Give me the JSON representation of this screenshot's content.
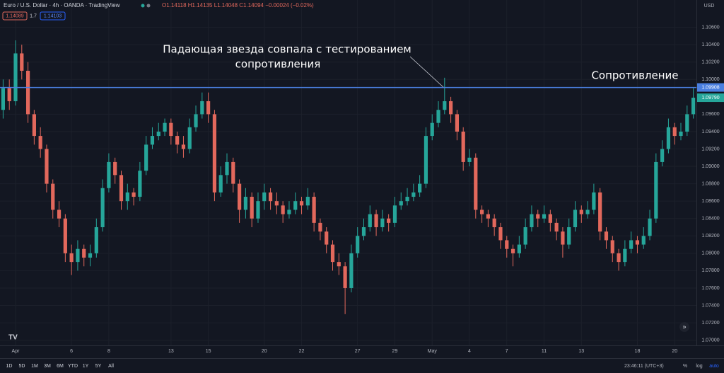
{
  "header": {
    "title": "Euro / U.S. Dollar · 4h · OANDA · TradingView",
    "readout": "O1.14118 H1.14135 L1.14048 C1.14094 −0.00024 (−0.02%)",
    "sell": "1.14089",
    "spread": "1.7",
    "buy": "1.14103",
    "currency": "USD"
  },
  "toolbar": {
    "ranges": [
      "1D",
      "5D",
      "1M",
      "3M",
      "6M",
      "YTD",
      "1Y",
      "5Y",
      "All"
    ],
    "clock": "23:46:11 (UTC+3)",
    "percent": "%",
    "log": "log",
    "auto": "auto"
  },
  "chart_data": {
    "type": "candlestick",
    "annotation": [
      "Падающая звезда совпала с тестированием",
      "сопротивления"
    ],
    "resistance_label": "Сопротивление",
    "resistance_level": 1.09908,
    "current_price": {
      "value": 1.0979,
      "label": "1.09790"
    },
    "up_color": "#26a69a",
    "down_color": "#e2685c",
    "level_color": "#4a7fe0",
    "ylim": [
      1.0694,
      1.1067
    ],
    "yticks": [
      {
        "value": 1.07,
        "label": "1.07000"
      },
      {
        "value": 1.072,
        "label": "1.07200"
      },
      {
        "value": 1.074,
        "label": "1.07400"
      },
      {
        "value": 1.076,
        "label": "1.07600"
      },
      {
        "value": 1.078,
        "label": "1.07800"
      },
      {
        "value": 1.08,
        "label": "1.08000"
      },
      {
        "value": 1.082,
        "label": "1.08200"
      },
      {
        "value": 1.084,
        "label": "1.08400"
      },
      {
        "value": 1.086,
        "label": "1.08600"
      },
      {
        "value": 1.088,
        "label": "1.08800"
      },
      {
        "value": 1.09,
        "label": "1.09000"
      },
      {
        "value": 1.092,
        "label": "1.09200"
      },
      {
        "value": 1.094,
        "label": "1.09400"
      },
      {
        "value": 1.096,
        "label": "1.09600"
      },
      {
        "value": 1.1,
        "label": "1.10000"
      },
      {
        "value": 1.102,
        "label": "1.10200"
      },
      {
        "value": 1.104,
        "label": "1.10400"
      },
      {
        "value": 1.106,
        "label": "1.10600"
      }
    ],
    "grid": true,
    "categories": [
      null,
      null,
      "Apr",
      null,
      null,
      null,
      null,
      null,
      null,
      null,
      null,
      "6",
      null,
      null,
      null,
      null,
      null,
      "8",
      null,
      null,
      null,
      null,
      null,
      null,
      null,
      null,
      null,
      "13",
      null,
      null,
      null,
      null,
      null,
      "15",
      null,
      null,
      null,
      null,
      null,
      null,
      null,
      null,
      "20",
      null,
      null,
      null,
      null,
      null,
      "22",
      null,
      null,
      null,
      null,
      null,
      null,
      null,
      null,
      "27",
      null,
      null,
      null,
      null,
      null,
      "29",
      null,
      null,
      null,
      null,
      null,
      "May",
      null,
      null,
      null,
      null,
      null,
      "4",
      null,
      null,
      null,
      null,
      null,
      "7",
      null,
      null,
      null,
      null,
      null,
      "11",
      null,
      null,
      null,
      null,
      null,
      "13",
      null,
      null,
      null,
      null,
      null,
      null,
      null,
      null,
      "18",
      null,
      null,
      null,
      null,
      null,
      "20",
      null,
      null,
      null
    ],
    "ohlc": [
      [
        1.0965,
        1.1,
        1.0955,
        1.099
      ],
      [
        1.099,
        1.1,
        1.0965,
        1.0975
      ],
      [
        1.0975,
        1.1045,
        1.097,
        1.103
      ],
      [
        1.103,
        1.104,
        1.1,
        1.101
      ],
      [
        1.101,
        1.102,
        1.095,
        1.096
      ],
      [
        1.096,
        1.0965,
        1.0925,
        1.0935
      ],
      [
        1.0935,
        1.0945,
        1.091,
        1.092
      ],
      [
        1.092,
        1.0925,
        1.087,
        1.088
      ],
      [
        1.088,
        1.0885,
        1.084,
        1.085
      ],
      [
        1.085,
        1.086,
        1.083,
        1.084
      ],
      [
        1.084,
        1.0845,
        1.079,
        1.08
      ],
      [
        1.08,
        1.081,
        1.0775,
        1.079
      ],
      [
        1.079,
        1.0815,
        1.078,
        1.0805
      ],
      [
        1.0805,
        1.081,
        1.0785,
        1.0795
      ],
      [
        1.0795,
        1.081,
        1.0785,
        1.08
      ],
      [
        1.08,
        1.084,
        1.0795,
        1.083
      ],
      [
        1.083,
        1.0885,
        1.0825,
        1.0875
      ],
      [
        1.0875,
        1.0915,
        1.087,
        1.0905
      ],
      [
        1.0905,
        1.091,
        1.088,
        1.089
      ],
      [
        1.089,
        1.0895,
        1.085,
        1.086
      ],
      [
        1.086,
        1.088,
        1.085,
        1.087
      ],
      [
        1.087,
        1.0875,
        1.0855,
        1.0865
      ],
      [
        1.0865,
        1.0905,
        1.086,
        1.0895
      ],
      [
        1.0895,
        1.0935,
        1.089,
        1.0925
      ],
      [
        1.0925,
        1.0945,
        1.092,
        1.0935
      ],
      [
        1.0935,
        1.095,
        1.093,
        1.094
      ],
      [
        1.094,
        1.0955,
        1.0935,
        1.095
      ],
      [
        1.095,
        1.0955,
        1.0925,
        1.0935
      ],
      [
        1.0935,
        1.094,
        1.0915,
        1.0925
      ],
      [
        1.0925,
        1.0935,
        1.091,
        1.092
      ],
      [
        1.092,
        1.0955,
        1.0915,
        1.0945
      ],
      [
        1.0945,
        1.097,
        1.094,
        1.096
      ],
      [
        1.096,
        1.0985,
        1.0955,
        1.0975
      ],
      [
        1.0975,
        1.0985,
        1.095,
        1.096
      ],
      [
        1.096,
        1.0965,
        1.086,
        1.087
      ],
      [
        1.087,
        1.09,
        1.0865,
        1.089
      ],
      [
        1.089,
        1.0915,
        1.088,
        1.0905
      ],
      [
        1.0905,
        1.091,
        1.087,
        1.088
      ],
      [
        1.088,
        1.0885,
        1.0835,
        1.085
      ],
      [
        1.085,
        1.0875,
        1.084,
        1.0865
      ],
      [
        1.0865,
        1.087,
        1.083,
        1.084
      ],
      [
        1.084,
        1.087,
        1.0835,
        1.086
      ],
      [
        1.086,
        1.088,
        1.085,
        1.087
      ],
      [
        1.087,
        1.0875,
        1.085,
        1.086
      ],
      [
        1.086,
        1.087,
        1.0845,
        1.0855
      ],
      [
        1.0855,
        1.086,
        1.0835,
        1.0845
      ],
      [
        1.0845,
        1.086,
        1.084,
        1.085
      ],
      [
        1.085,
        1.087,
        1.0845,
        1.086
      ],
      [
        1.086,
        1.0865,
        1.0845,
        1.0855
      ],
      [
        1.0855,
        1.0875,
        1.085,
        1.0865
      ],
      [
        1.0865,
        1.087,
        1.0825,
        1.0835
      ],
      [
        1.0835,
        1.084,
        1.0815,
        1.0825
      ],
      [
        1.0825,
        1.083,
        1.08,
        1.081
      ],
      [
        1.081,
        1.0815,
        1.078,
        1.079
      ],
      [
        1.079,
        1.08,
        1.0775,
        1.0785
      ],
      [
        1.0785,
        1.079,
        1.073,
        1.076
      ],
      [
        1.076,
        1.081,
        1.0755,
        1.08
      ],
      [
        1.08,
        1.083,
        1.0795,
        1.082
      ],
      [
        1.082,
        1.084,
        1.0815,
        1.083
      ],
      [
        1.083,
        1.0855,
        1.0825,
        1.0845
      ],
      [
        1.0845,
        1.085,
        1.082,
        1.083
      ],
      [
        1.083,
        1.085,
        1.0825,
        1.084
      ],
      [
        1.084,
        1.0845,
        1.0825,
        1.0835
      ],
      [
        1.0835,
        1.0865,
        1.083,
        1.0855
      ],
      [
        1.0855,
        1.087,
        1.085,
        1.086
      ],
      [
        1.086,
        1.0875,
        1.0855,
        1.0865
      ],
      [
        1.0865,
        1.088,
        1.086,
        1.087
      ],
      [
        1.087,
        1.089,
        1.0865,
        1.088
      ],
      [
        1.088,
        1.0945,
        1.0875,
        1.0935
      ],
      [
        1.0935,
        1.096,
        1.093,
        1.095
      ],
      [
        1.095,
        1.0975,
        1.0945,
        1.0965
      ],
      [
        1.0965,
        1.1002,
        1.096,
        1.0975
      ],
      [
        1.0975,
        1.098,
        1.095,
        1.096
      ],
      [
        1.096,
        1.0965,
        1.093,
        1.094
      ],
      [
        1.094,
        1.0945,
        1.0895,
        1.0905
      ],
      [
        1.0905,
        1.092,
        1.09,
        1.091
      ],
      [
        1.091,
        1.0915,
        1.084,
        1.085
      ],
      [
        1.085,
        1.0855,
        1.0835,
        1.0845
      ],
      [
        1.0845,
        1.085,
        1.083,
        1.084
      ],
      [
        1.084,
        1.0845,
        1.082,
        1.083
      ],
      [
        1.083,
        1.0835,
        1.0805,
        1.0815
      ],
      [
        1.0815,
        1.082,
        1.0795,
        1.0805
      ],
      [
        1.0805,
        1.081,
        1.0785,
        1.08
      ],
      [
        1.08,
        1.082,
        1.0795,
        1.081
      ],
      [
        1.081,
        1.084,
        1.0805,
        1.083
      ],
      [
        1.083,
        1.0855,
        1.0825,
        1.0845
      ],
      [
        1.0845,
        1.085,
        1.083,
        1.084
      ],
      [
        1.084,
        1.0855,
        1.0835,
        1.0845
      ],
      [
        1.0845,
        1.085,
        1.0825,
        1.0835
      ],
      [
        1.0835,
        1.084,
        1.0815,
        1.0825
      ],
      [
        1.0825,
        1.083,
        1.0795,
        1.081
      ],
      [
        1.081,
        1.084,
        1.0805,
        1.083
      ],
      [
        1.083,
        1.086,
        1.0825,
        1.085
      ],
      [
        1.085,
        1.0855,
        1.0835,
        1.0845
      ],
      [
        1.0845,
        1.086,
        1.084,
        1.085
      ],
      [
        1.085,
        1.088,
        1.0845,
        1.087
      ],
      [
        1.087,
        1.0875,
        1.0815,
        1.0825
      ],
      [
        1.0825,
        1.083,
        1.0805,
        1.0815
      ],
      [
        1.0815,
        1.082,
        1.079,
        1.08
      ],
      [
        1.08,
        1.0805,
        1.078,
        1.079
      ],
      [
        1.079,
        1.0815,
        1.0785,
        1.0805
      ],
      [
        1.0805,
        1.0825,
        1.08,
        1.0815
      ],
      [
        1.0815,
        1.082,
        1.08,
        1.081
      ],
      [
        1.081,
        1.083,
        1.0805,
        1.082
      ],
      [
        1.082,
        1.085,
        1.0815,
        1.084
      ],
      [
        1.084,
        1.0915,
        1.0835,
        1.0905
      ],
      [
        1.0905,
        1.093,
        1.09,
        1.092
      ],
      [
        1.092,
        1.0955,
        1.0915,
        1.0945
      ],
      [
        1.0945,
        1.095,
        1.0925,
        1.0935
      ],
      [
        1.0935,
        1.095,
        1.093,
        1.094
      ],
      [
        1.094,
        1.097,
        1.0935,
        1.096
      ],
      [
        1.096,
        1.099,
        1.0955,
        1.0979
      ]
    ]
  }
}
